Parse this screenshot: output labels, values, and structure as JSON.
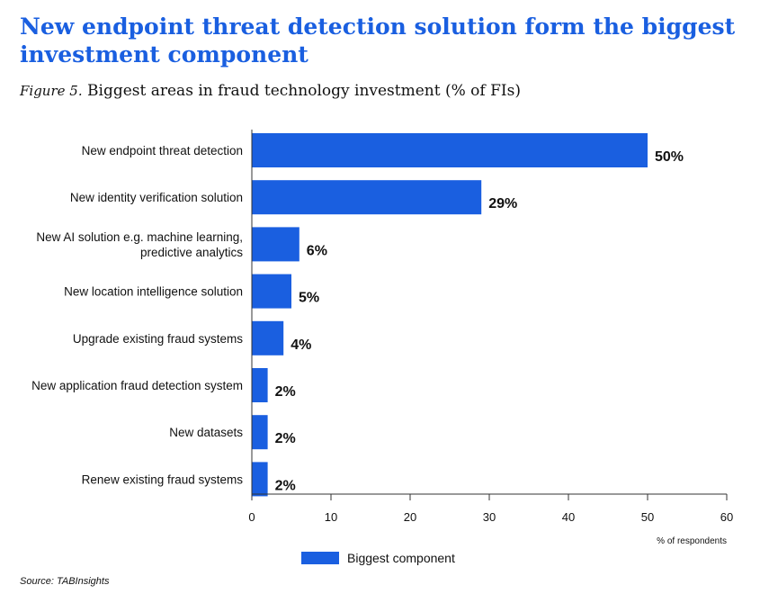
{
  "header": {
    "title": "New endpoint threat detection solution form the biggest investment component",
    "figure_label": "Figure 5.",
    "subtitle": "Biggest areas in fraud technology investment (% of FIs)"
  },
  "source": "Source: TABInsights",
  "colors": {
    "bar": "#1a5fe0",
    "title": "#1a5fe0"
  },
  "chart_data": {
    "type": "bar",
    "orientation": "horizontal",
    "categories": [
      "New endpoint threat detection",
      "New identity verification solution",
      [
        "New AI solution e.g. machine learning,",
        "predictive analytics"
      ],
      "New location intelligence solution",
      "Upgrade existing fraud systems",
      "New application fraud detection system",
      "New datasets",
      "Renew existing fraud systems"
    ],
    "series": [
      {
        "name": "Biggest component",
        "values": [
          50,
          29,
          6,
          5,
          4,
          2,
          2,
          2
        ]
      }
    ],
    "value_labels": [
      "50%",
      "29%",
      "6%",
      "5%",
      "4%",
      "2%",
      "2%",
      "2%"
    ],
    "xlim": [
      0,
      60
    ],
    "xticks": [
      0,
      10,
      20,
      30,
      40,
      50,
      60
    ],
    "xlabel": "% of respondents",
    "legend": {
      "placement": "bottom",
      "label": "Biggest component"
    },
    "grid": false
  }
}
